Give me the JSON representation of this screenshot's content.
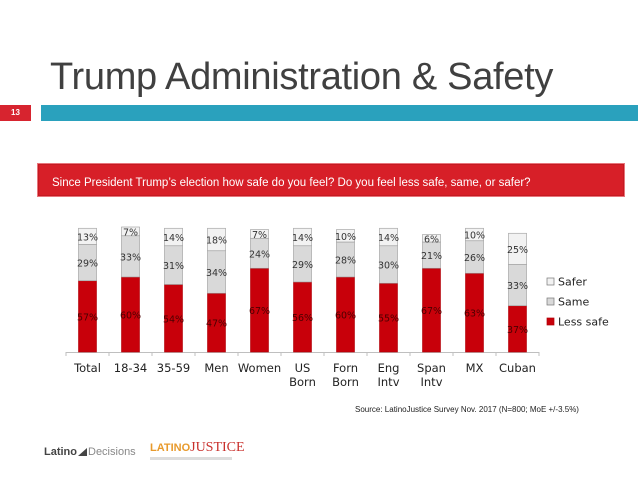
{
  "slide": {
    "title": "Trump Administration & Safety",
    "number": "13",
    "question": "Since President Trump’s election how safe do you feel?  Do you feel less safe, same, or safer?",
    "source": "Source: LatinoJustice Survey Nov. 2017 (N=800; MoE +/-3.5%)",
    "logos": {
      "latino_decisions_bold": "Latino",
      "latino_decisions_light": "Decisions",
      "latinojustice_caps": "LATINO",
      "latinojustice_serif": "JUSTICE"
    }
  },
  "colors": {
    "less_safe": "#c8000a",
    "same": "#d9d9d9",
    "safer": "#f2f2f2",
    "accent_bar": "#2aa1bd",
    "question_bg": "#d71f28"
  },
  "chart_data": {
    "type": "bar",
    "stacked": true,
    "title": "",
    "xlabel": "",
    "ylabel": "",
    "ylim": [
      0,
      100
    ],
    "grid": false,
    "legend": "right",
    "categories": [
      "Total",
      "18-34",
      "35-59",
      "Men",
      "Women",
      "US Born",
      "Forn Born",
      "Eng Intv",
      "Span Intv",
      "MX",
      "Cuban"
    ],
    "category_lines": [
      [
        "Total"
      ],
      [
        "18-34"
      ],
      [
        "35-59"
      ],
      [
        "Men"
      ],
      [
        "Women"
      ],
      [
        "US",
        "Born"
      ],
      [
        "Forn",
        "Born"
      ],
      [
        "Eng",
        "Intv"
      ],
      [
        "Span",
        "Intv"
      ],
      [
        "MX"
      ],
      [
        "Cuban"
      ]
    ],
    "series": [
      {
        "name": "Less safe",
        "values": [
          57,
          60,
          54,
          47,
          67,
          56,
          60,
          55,
          67,
          63,
          37
        ]
      },
      {
        "name": "Same",
        "values": [
          29,
          33,
          31,
          34,
          24,
          29,
          28,
          30,
          21,
          26,
          33
        ]
      },
      {
        "name": "Safer",
        "values": [
          13,
          7,
          14,
          18,
          7,
          14,
          10,
          14,
          6,
          10,
          25
        ]
      }
    ],
    "legend_order": [
      "Safer",
      "Same",
      "Less safe"
    ]
  }
}
